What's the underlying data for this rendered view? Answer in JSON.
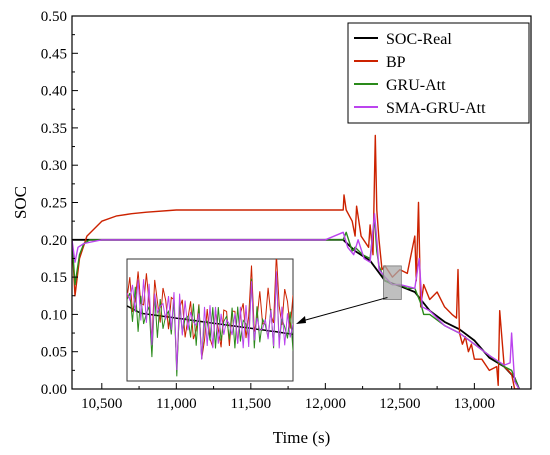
{
  "chart_data": {
    "type": "line",
    "xlabel": "Time (s)",
    "ylabel": "SOC",
    "xlim": [
      10300,
      13380
    ],
    "ylim": [
      0.0,
      0.5
    ],
    "xticks": [
      10500,
      11000,
      11500,
      12000,
      12500,
      13000
    ],
    "xtick_labels": [
      "10,500",
      "11,000",
      "11,500",
      "12,000",
      "12,500",
      "13,000"
    ],
    "yticks": [
      0.0,
      0.05,
      0.1,
      0.15,
      0.2,
      0.25,
      0.3,
      0.35,
      0.4,
      0.45,
      0.5
    ],
    "ytick_labels": [
      "0.00",
      "0.05",
      "0.10",
      "0.15",
      "0.20",
      "0.25",
      "0.30",
      "0.35",
      "0.40",
      "0.45",
      "0.50"
    ],
    "grid": false,
    "legend_position": "top-right",
    "series": [
      {
        "name": "SOC-Real",
        "color": "#000000",
        "x": [
          10300,
          10500,
          11000,
          11500,
          12000,
          12120,
          12200,
          12300,
          12400,
          12500,
          12600,
          12700,
          12800,
          12900,
          13000,
          13100,
          13200,
          13270,
          13300
        ],
        "y": [
          0.2,
          0.2,
          0.2,
          0.2,
          0.2,
          0.2,
          0.185,
          0.172,
          0.145,
          0.138,
          0.13,
          0.105,
          0.09,
          0.08,
          0.065,
          0.042,
          0.03,
          0.015,
          0.0
        ]
      },
      {
        "name": "BP",
        "color": "#cc2200",
        "x": [
          10300,
          10320,
          10350,
          10400,
          10500,
          10600,
          10700,
          10800,
          11000,
          11500,
          12000,
          12120,
          12125,
          12140,
          12180,
          12200,
          12210,
          12240,
          12290,
          12300,
          12320,
          12335,
          12345,
          12360,
          12380,
          12400,
          12450,
          12500,
          12550,
          12600,
          12610,
          12625,
          12640,
          12660,
          12700,
          12750,
          12800,
          12850,
          12880,
          12890,
          12900,
          12920,
          12940,
          12960,
          12980,
          13000,
          13050,
          13100,
          13150,
          13160,
          13170,
          13200,
          13250,
          13270,
          13300
        ],
        "y": [
          0.2,
          0.125,
          0.175,
          0.205,
          0.225,
          0.232,
          0.235,
          0.237,
          0.24,
          0.24,
          0.24,
          0.24,
          0.26,
          0.24,
          0.225,
          0.205,
          0.245,
          0.205,
          0.19,
          0.22,
          0.18,
          0.34,
          0.24,
          0.2,
          0.16,
          0.165,
          0.15,
          0.16,
          0.155,
          0.205,
          0.145,
          0.25,
          0.11,
          0.14,
          0.12,
          0.13,
          0.11,
          0.1,
          0.095,
          0.16,
          0.075,
          0.06,
          0.07,
          0.05,
          0.06,
          0.04,
          0.04,
          0.025,
          0.03,
          0.005,
          0.105,
          0.03,
          0.02,
          0.0,
          0.0
        ]
      },
      {
        "name": "GRU-Att",
        "color": "#2a8a1a",
        "x": [
          10300,
          10320,
          10350,
          10380,
          10420,
          10500,
          11000,
          11500,
          12000,
          12120,
          12140,
          12180,
          12200,
          12250,
          12300,
          12330,
          12345,
          12360,
          12400,
          12450,
          12500,
          12550,
          12600,
          12640,
          12660,
          12700,
          12800,
          12900,
          13000,
          13100,
          13200,
          13250,
          13270,
          13300
        ],
        "y": [
          0.2,
          0.14,
          0.18,
          0.195,
          0.2,
          0.2,
          0.2,
          0.2,
          0.2,
          0.2,
          0.21,
          0.185,
          0.19,
          0.18,
          0.175,
          0.23,
          0.185,
          0.165,
          0.145,
          0.14,
          0.14,
          0.135,
          0.135,
          0.115,
          0.1,
          0.1,
          0.085,
          0.075,
          0.06,
          0.045,
          0.03,
          0.025,
          0.015,
          0.0
        ]
      },
      {
        "name": "SMA-GRU-Att",
        "color": "#bb44ee",
        "x": [
          10300,
          10320,
          10340,
          10380,
          10450,
          10500,
          10550,
          10600,
          10650,
          10700,
          10750,
          11000,
          11500,
          12000,
          12120,
          12150,
          12190,
          12220,
          12260,
          12300,
          12330,
          12345,
          12360,
          12400,
          12450,
          12500,
          12600,
          12630,
          12650,
          12700,
          12800,
          12900,
          13000,
          13100,
          13200,
          13240,
          13250,
          13270,
          13300
        ],
        "y": [
          0.2,
          0.17,
          0.19,
          0.195,
          0.198,
          0.2,
          0.2,
          0.2,
          0.2,
          0.2,
          0.2,
          0.2,
          0.2,
          0.2,
          0.21,
          0.19,
          0.18,
          0.2,
          0.175,
          0.17,
          0.235,
          0.2,
          0.16,
          0.15,
          0.14,
          0.14,
          0.135,
          0.175,
          0.11,
          0.105,
          0.085,
          0.075,
          0.06,
          0.045,
          0.032,
          0.035,
          0.075,
          0.01,
          0.0
        ]
      }
    ],
    "annotations": [
      {
        "type": "zoom-inset",
        "source_xlim": [
          12390,
          12510
        ],
        "source_ylim": [
          0.12,
          0.165
        ],
        "fill": "#a9a9a9"
      }
    ]
  }
}
